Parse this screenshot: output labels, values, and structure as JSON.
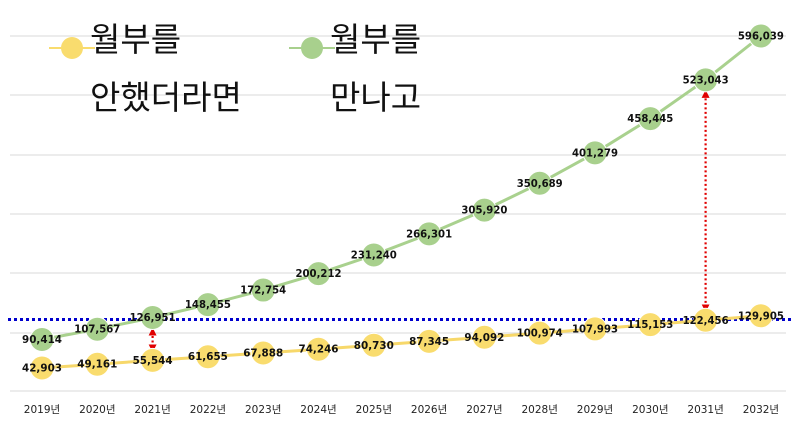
{
  "colors": {
    "series_a": "#f9dc6e",
    "series_a_line": "#f7d86a",
    "series_b": "#a8d08d",
    "series_b_line": "#a9d18e",
    "reference_line": "#0000cc",
    "arrow": "#e00000",
    "grid": "#d9d9d9"
  },
  "legend": [
    {
      "line1": "월부를",
      "line2": "안했더라면"
    },
    {
      "line1": "월부를",
      "line2": "만나고"
    }
  ],
  "chart_data": {
    "type": "line",
    "categories": [
      "2019년",
      "2020년",
      "2021년",
      "2022년",
      "2023년",
      "2024년",
      "2025년",
      "2026년",
      "2027년",
      "2028년",
      "2029년",
      "2030년",
      "2031년",
      "2032년"
    ],
    "series": [
      {
        "values": [
          42903,
          49161,
          55544,
          61655,
          67888,
          74246,
          80730,
          87345,
          94092,
          100974,
          107993,
          115153,
          122456,
          129905
        ],
        "labels": [
          "42,903",
          "49,161",
          "55,544",
          "61,655",
          "67,888",
          "74,246",
          "80,730",
          "87,345",
          "94,092",
          "100,974",
          "107,993",
          "115,153",
          "122,456",
          "129,905"
        ]
      },
      {
        "values": [
          90414,
          107567,
          126951,
          148455,
          172754,
          200212,
          231240,
          266301,
          305920,
          350689,
          401279,
          458445,
          523043,
          596039
        ],
        "labels": [
          "90,414",
          "107,567",
          "126,951",
          "148,455",
          "172,754",
          "200,212",
          "231,240",
          "266,301",
          "305,920",
          "350,689",
          "401,279",
          "458,445",
          "523,043",
          "596,039"
        ]
      }
    ],
    "reference_line_value": 126951,
    "arrows": [
      {
        "category_index": 2,
        "from_series": 1,
        "to_series": 0
      },
      {
        "category_index": 12,
        "from_series": 1,
        "to_series": 0
      }
    ],
    "title": "",
    "xlabel": "",
    "ylabel": "",
    "grid": true,
    "legend_position": "top-left"
  }
}
